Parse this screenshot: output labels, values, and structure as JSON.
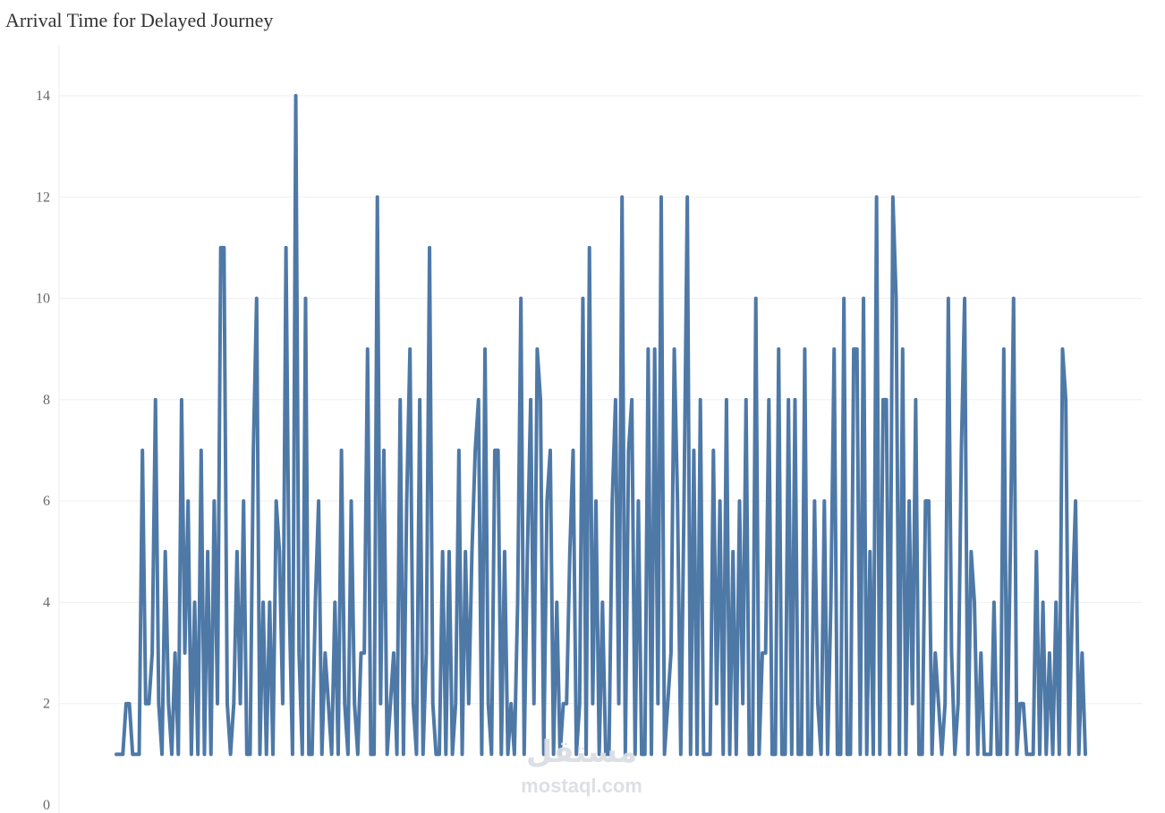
{
  "chart_data": {
    "type": "line",
    "title": "Arrival Time for Delayed Journey",
    "xlabel": "",
    "ylabel": "",
    "ylim": [
      0,
      15
    ],
    "yticks": [
      0,
      2,
      4,
      6,
      8,
      10,
      12,
      14
    ],
    "grid": true,
    "legend": "none",
    "series": [
      {
        "color": "#4e79a7",
        "values": [
          1,
          1,
          1,
          2,
          2,
          1,
          1,
          1,
          7,
          2,
          2,
          3,
          8,
          2,
          1,
          5,
          2,
          1,
          3,
          1,
          8,
          3,
          6,
          1,
          4,
          1,
          7,
          1,
          5,
          1,
          6,
          2,
          11,
          11,
          2,
          1,
          2,
          5,
          2,
          6,
          1,
          1,
          7,
          10,
          1,
          4,
          1,
          4,
          1,
          6,
          5,
          2,
          11,
          4,
          1,
          14,
          3,
          1,
          10,
          1,
          1,
          4,
          6,
          1,
          3,
          2,
          1,
          4,
          1,
          7,
          2,
          1,
          6,
          2,
          1,
          3,
          3,
          9,
          1,
          1,
          12,
          2,
          7,
          1,
          2,
          3,
          1,
          8,
          1,
          6,
          9,
          2,
          1,
          8,
          1,
          3,
          11,
          2,
          1,
          1,
          5,
          1,
          5,
          1,
          2,
          7,
          1,
          5,
          2,
          5,
          7,
          8,
          1,
          9,
          2,
          1,
          7,
          7,
          1,
          5,
          1,
          2,
          1,
          4,
          10,
          1,
          5,
          8,
          2,
          9,
          8,
          1,
          6,
          7,
          1,
          4,
          1,
          2,
          2,
          5,
          7,
          1,
          2,
          10,
          1,
          11,
          2,
          6,
          1,
          4,
          1,
          1,
          6,
          8,
          2,
          12,
          1,
          7,
          8,
          1,
          6,
          1,
          1,
          9,
          1,
          9,
          2,
          12,
          1,
          2,
          3,
          9,
          6,
          1,
          6,
          12,
          1,
          7,
          1,
          8,
          1,
          1,
          1,
          7,
          2,
          6,
          1,
          8,
          1,
          5,
          1,
          6,
          2,
          8,
          1,
          1,
          10,
          1,
          3,
          3,
          8,
          1,
          1,
          9,
          1,
          1,
          8,
          1,
          8,
          1,
          1,
          9,
          1,
          1,
          6,
          2,
          1,
          6,
          1,
          4,
          9,
          1,
          1,
          10,
          1,
          1,
          9,
          9,
          1,
          10,
          1,
          5,
          1,
          12,
          1,
          8,
          8,
          1,
          12,
          10,
          1,
          9,
          1,
          6,
          2,
          8,
          1,
          1,
          6,
          6,
          1,
          3,
          2,
          1,
          2,
          10,
          3,
          1,
          2,
          7,
          10,
          1,
          5,
          4,
          1,
          3,
          1,
          1,
          1,
          4,
          1,
          1,
          9,
          1,
          5,
          10,
          1,
          2,
          2,
          1,
          1,
          1,
          5,
          1,
          4,
          1,
          3,
          1,
          4,
          1,
          9,
          8,
          1,
          4,
          6,
          1,
          3,
          1
        ]
      }
    ]
  },
  "watermark": {
    "arabic": "مستقل",
    "latin": "mostaql.com"
  }
}
